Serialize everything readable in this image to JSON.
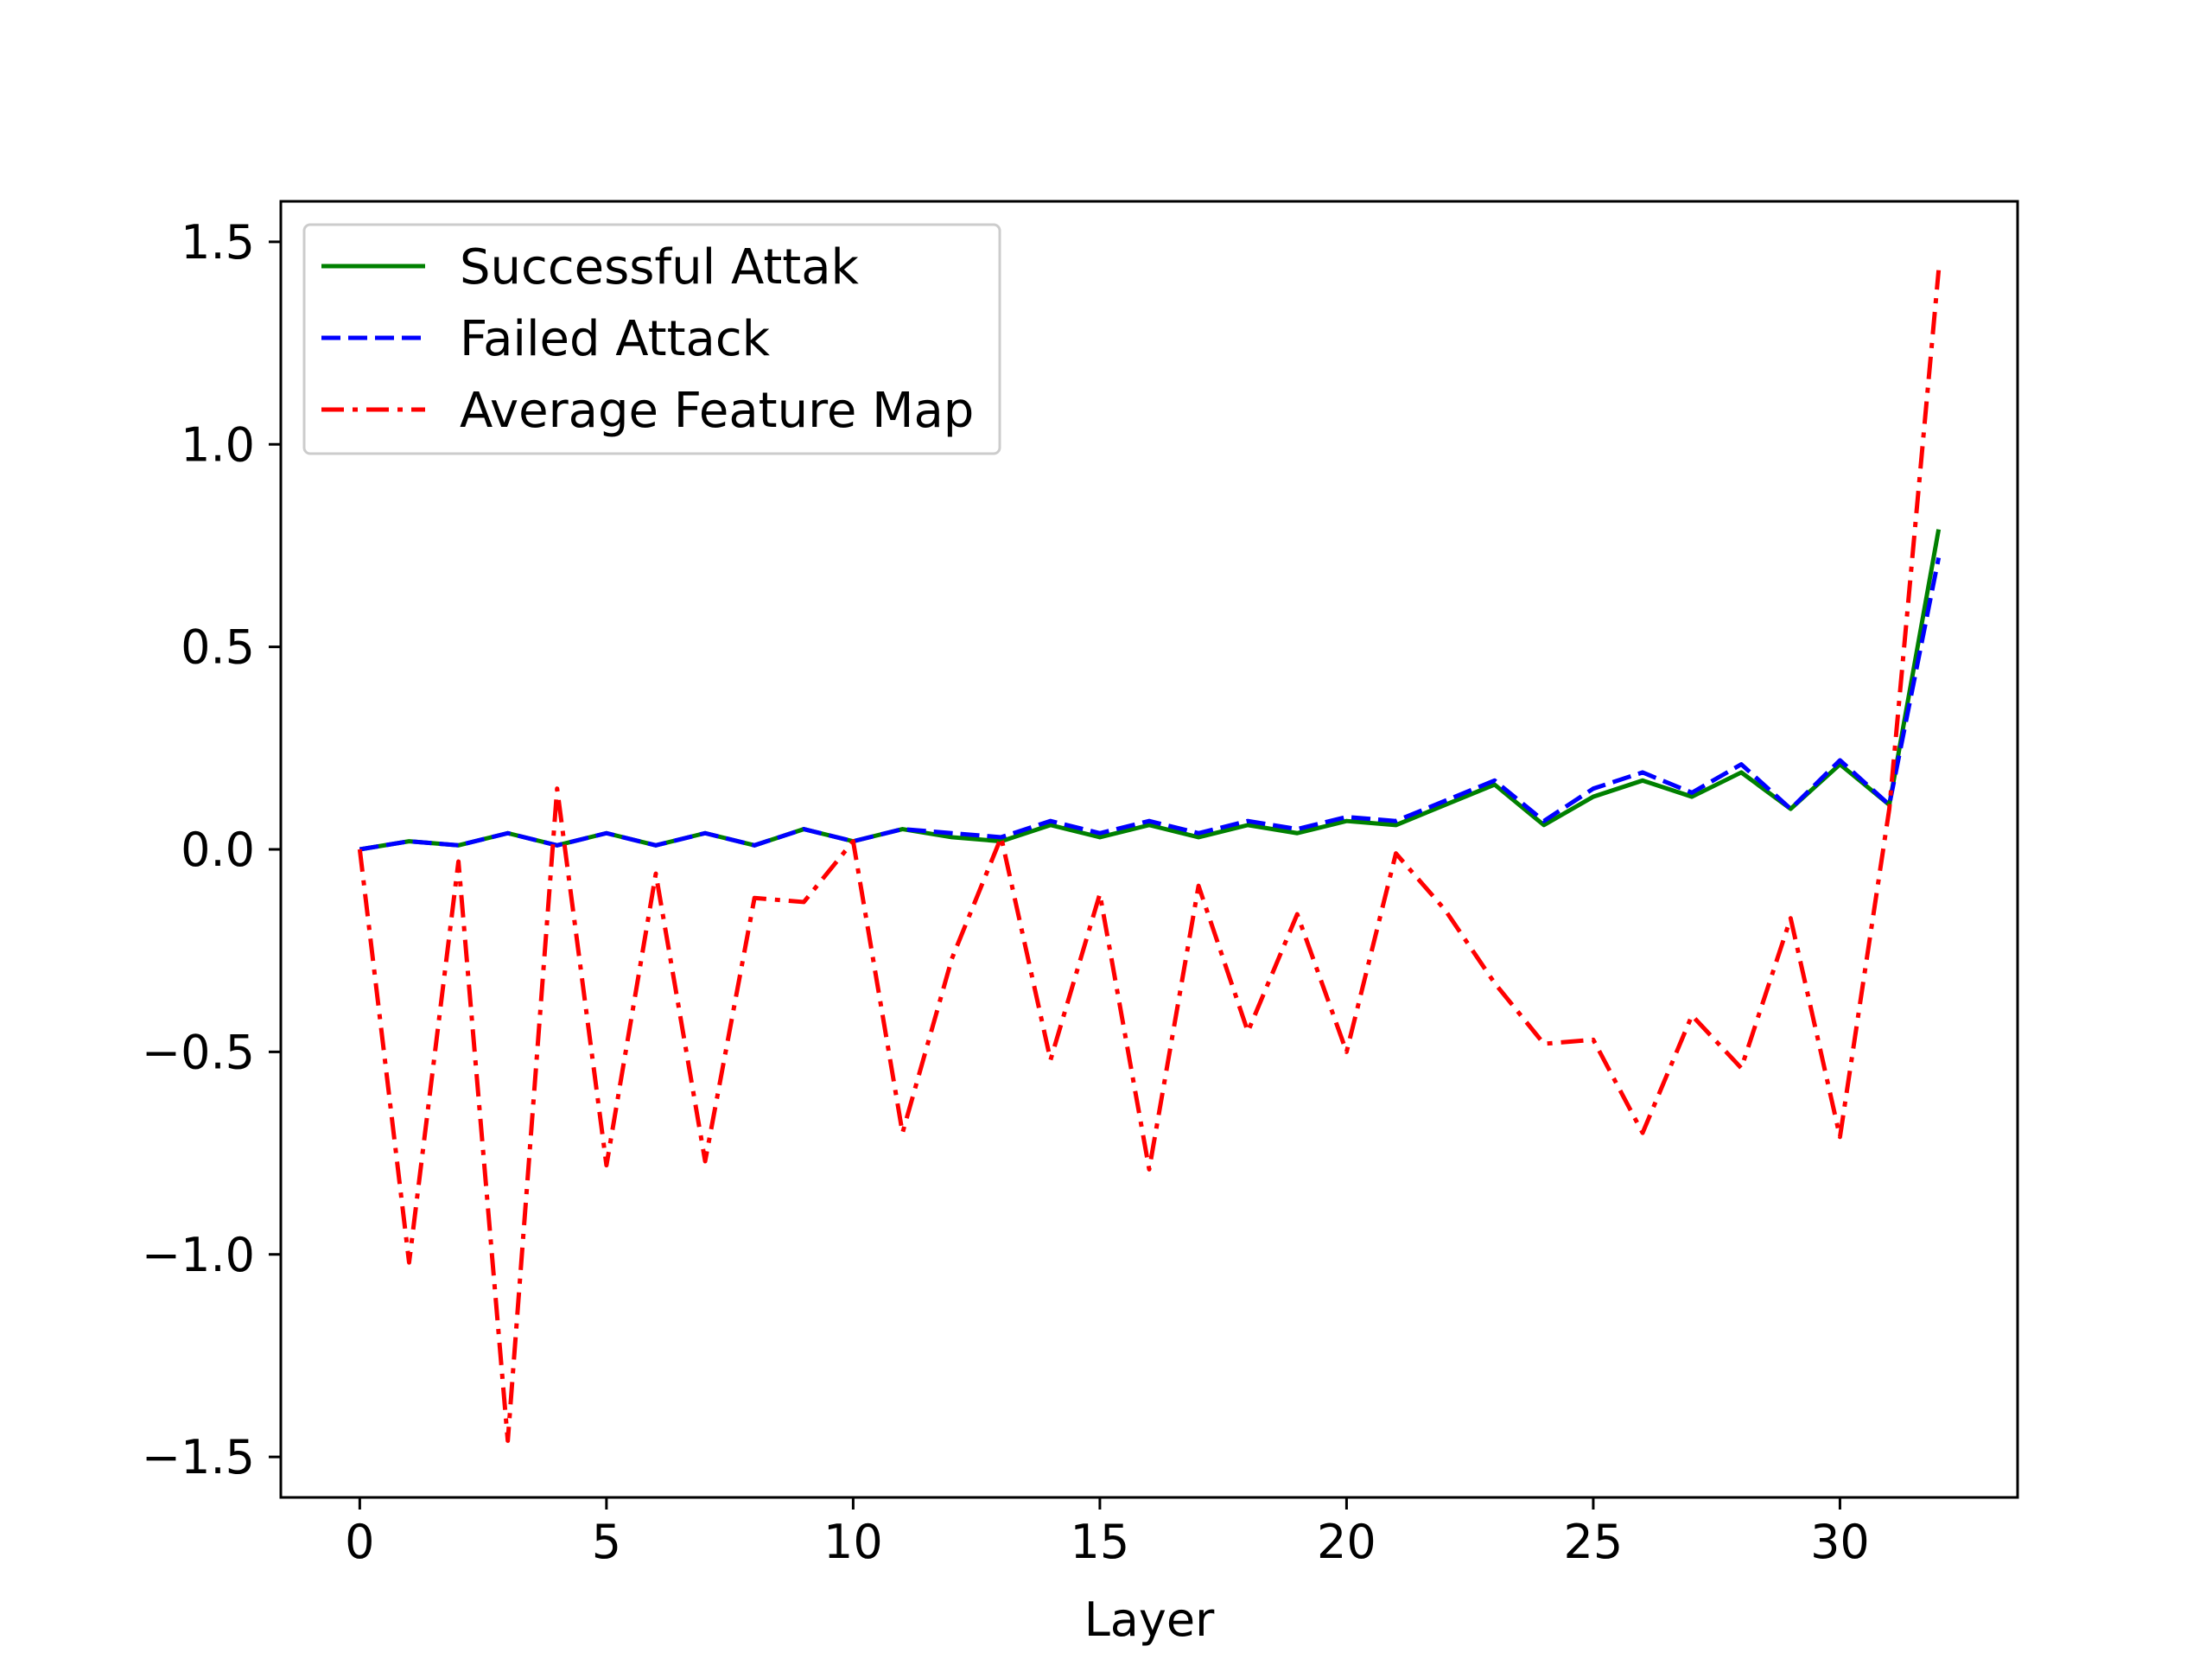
{
  "chart_data": {
    "type": "line",
    "title": "",
    "xlabel": "Layer",
    "ylabel": "",
    "xlim": [
      -1.6,
      33.6
    ],
    "ylim": [
      -1.6,
      1.6
    ],
    "xticks": [
      0,
      5,
      10,
      15,
      20,
      25,
      30
    ],
    "yticks": [
      -1.5,
      -1.0,
      -0.5,
      0.0,
      0.5,
      1.0,
      1.5
    ],
    "ytick_labels": [
      "−1.5",
      "−1.0",
      "−0.5",
      "0.0",
      "0.5",
      "1.0",
      "1.5"
    ],
    "grid": false,
    "legend_position": "top-left",
    "x": [
      0,
      1,
      2,
      3,
      4,
      5,
      6,
      7,
      8,
      9,
      10,
      11,
      12,
      13,
      14,
      15,
      16,
      17,
      18,
      19,
      20,
      21,
      22,
      23,
      24,
      25,
      26,
      27,
      28,
      29,
      30,
      31,
      32
    ],
    "series": [
      {
        "name": "Successful Attak",
        "color": "#008000",
        "style": "solid",
        "values": [
          0.0,
          0.02,
          0.01,
          0.04,
          0.01,
          0.04,
          0.01,
          0.04,
          0.01,
          0.05,
          0.02,
          0.05,
          0.03,
          0.02,
          0.06,
          0.03,
          0.06,
          0.03,
          0.06,
          0.04,
          0.07,
          0.06,
          0.11,
          0.16,
          0.06,
          0.13,
          0.17,
          0.13,
          0.19,
          0.1,
          0.21,
          0.11,
          0.79
        ]
      },
      {
        "name": "Failed Attack",
        "color": "#0000ff",
        "style": "dashed",
        "values": [
          0.0,
          0.02,
          0.01,
          0.04,
          0.01,
          0.04,
          0.01,
          0.04,
          0.01,
          0.05,
          0.02,
          0.05,
          0.04,
          0.03,
          0.07,
          0.04,
          0.07,
          0.04,
          0.07,
          0.05,
          0.08,
          0.07,
          0.12,
          0.17,
          0.07,
          0.15,
          0.19,
          0.14,
          0.21,
          0.1,
          0.22,
          0.11,
          0.72
        ]
      },
      {
        "name": "Average Feature Map",
        "color": "#ff0000",
        "style": "dashdot",
        "values": [
          0.0,
          -1.02,
          -0.03,
          -1.46,
          0.15,
          -0.78,
          -0.06,
          -0.77,
          -0.12,
          -0.13,
          0.02,
          -0.7,
          -0.27,
          0.03,
          -0.52,
          -0.11,
          -0.79,
          -0.09,
          -0.45,
          -0.16,
          -0.5,
          -0.01,
          -0.15,
          -0.33,
          -0.48,
          -0.47,
          -0.7,
          -0.41,
          -0.54,
          -0.17,
          -0.71,
          0.1,
          1.43
        ]
      }
    ]
  }
}
